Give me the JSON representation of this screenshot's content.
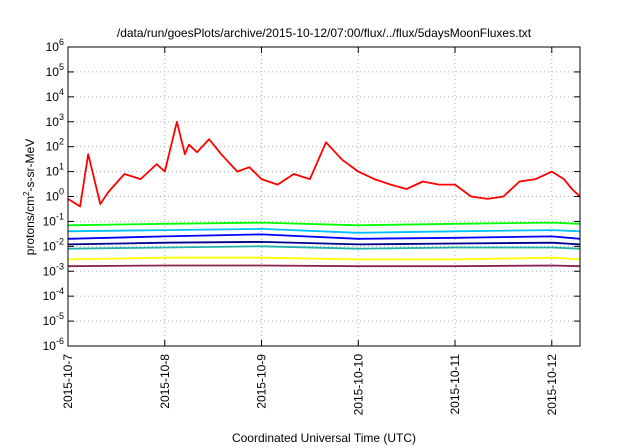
{
  "chart_data": {
    "type": "line",
    "title": "/data/run/goesPlots/archive/2015-10-12/07:00/flux/../flux/5daysMoonFluxes.txt",
    "xlabel": "Coordinated Universal Time (UTC)",
    "ylabel": {
      "base": "protons/cm",
      "sup": "2",
      "rest": "-s-sr-MeV"
    },
    "y_scale": "log",
    "ylim_exponents": [
      -6,
      6
    ],
    "y_ticks": [
      {
        "base": "10",
        "exp": "-6"
      },
      {
        "base": "10",
        "exp": "-5"
      },
      {
        "base": "10",
        "exp": "-4"
      },
      {
        "base": "10",
        "exp": "-3"
      },
      {
        "base": "10",
        "exp": "-2"
      },
      {
        "base": "10",
        "exp": "-1"
      },
      {
        "base": "10",
        "exp": "0"
      },
      {
        "base": "10",
        "exp": "1"
      },
      {
        "base": "10",
        "exp": "2"
      },
      {
        "base": "10",
        "exp": "3"
      },
      {
        "base": "10",
        "exp": "4"
      },
      {
        "base": "10",
        "exp": "5"
      },
      {
        "base": "10",
        "exp": "6"
      }
    ],
    "x_domain": [
      "2015-10-07 00:00",
      "2015-10-12 07:00"
    ],
    "x_ticks": [
      "2015-10-7",
      "2015-10-8",
      "2015-10-9",
      "2015-10-10",
      "2015-10-11",
      "2015-10-12"
    ],
    "grid": true,
    "series": [
      {
        "color": "#ff0000",
        "x": [
          "2015-10-07 00:00",
          "2015-10-07 03:00",
          "2015-10-07 05:00",
          "2015-10-07 08:00",
          "2015-10-07 10:00",
          "2015-10-07 14:00",
          "2015-10-07 18:00",
          "2015-10-07 22:00",
          "2015-10-08 00:00",
          "2015-10-08 03:00",
          "2015-10-08 05:00",
          "2015-10-08 06:00",
          "2015-10-08 08:00",
          "2015-10-08 11:00",
          "2015-10-08 14:00",
          "2015-10-08 18:00",
          "2015-10-08 21:00",
          "2015-10-09 00:00",
          "2015-10-09 04:00",
          "2015-10-09 08:00",
          "2015-10-09 12:00",
          "2015-10-09 16:00",
          "2015-10-09 20:00",
          "2015-10-10 00:00",
          "2015-10-10 04:00",
          "2015-10-10 08:00",
          "2015-10-10 12:00",
          "2015-10-10 16:00",
          "2015-10-10 20:00",
          "2015-10-11 00:00",
          "2015-10-11 04:00",
          "2015-10-11 08:00",
          "2015-10-11 12:00",
          "2015-10-11 16:00",
          "2015-10-11 20:00",
          "2015-10-12 00:00",
          "2015-10-12 03:00",
          "2015-10-12 05:00",
          "2015-10-12 07:00"
        ],
        "y": [
          0.8,
          0.4,
          50,
          0.5,
          1.5,
          8,
          5,
          20,
          10,
          1000,
          50,
          120,
          60,
          200,
          50,
          10,
          15,
          5,
          3,
          8,
          5,
          150,
          30,
          10,
          5,
          3,
          2,
          4,
          3,
          3,
          1,
          0.8,
          1,
          4,
          5,
          10,
          5,
          2,
          1
        ]
      },
      {
        "color": "#00ff00",
        "x": [
          "2015-10-07 00:00",
          "2015-10-08 00:00",
          "2015-10-09 00:00",
          "2015-10-10 00:00",
          "2015-10-11 00:00",
          "2015-10-12 00:00",
          "2015-10-12 07:00"
        ],
        "y": [
          0.07,
          0.08,
          0.09,
          0.07,
          0.08,
          0.09,
          0.08
        ]
      },
      {
        "color": "#00c0ff",
        "x": [
          "2015-10-07 00:00",
          "2015-10-08 00:00",
          "2015-10-09 00:00",
          "2015-10-10 00:00",
          "2015-10-11 00:00",
          "2015-10-12 00:00",
          "2015-10-12 07:00"
        ],
        "y": [
          0.04,
          0.045,
          0.05,
          0.035,
          0.04,
          0.045,
          0.04
        ]
      },
      {
        "color": "#0000ff",
        "x": [
          "2015-10-07 00:00",
          "2015-10-08 00:00",
          "2015-10-09 00:00",
          "2015-10-10 00:00",
          "2015-10-11 00:00",
          "2015-10-12 00:00",
          "2015-10-12 07:00"
        ],
        "y": [
          0.02,
          0.025,
          0.03,
          0.02,
          0.022,
          0.025,
          0.02
        ]
      },
      {
        "color": "#00008b",
        "x": [
          "2015-10-07 00:00",
          "2015-10-08 00:00",
          "2015-10-09 00:00",
          "2015-10-10 00:00",
          "2015-10-11 00:00",
          "2015-10-12 00:00",
          "2015-10-12 07:00"
        ],
        "y": [
          0.012,
          0.014,
          0.015,
          0.012,
          0.013,
          0.014,
          0.012
        ]
      },
      {
        "color": "#20b2aa",
        "x": [
          "2015-10-07 00:00",
          "2015-10-08 00:00",
          "2015-10-09 00:00",
          "2015-10-10 00:00",
          "2015-10-11 00:00",
          "2015-10-12 00:00",
          "2015-10-12 07:00"
        ],
        "y": [
          0.008,
          0.009,
          0.01,
          0.008,
          0.009,
          0.009,
          0.008
        ]
      },
      {
        "color": "#ffff00",
        "x": [
          "2015-10-07 00:00",
          "2015-10-08 00:00",
          "2015-10-09 00:00",
          "2015-10-10 00:00",
          "2015-10-11 00:00",
          "2015-10-12 00:00",
          "2015-10-12 07:00"
        ],
        "y": [
          0.003,
          0.0035,
          0.0035,
          0.003,
          0.003,
          0.0035,
          0.003
        ]
      },
      {
        "color": "#8b2252",
        "x": [
          "2015-10-07 00:00",
          "2015-10-08 00:00",
          "2015-10-09 00:00",
          "2015-10-10 00:00",
          "2015-10-11 00:00",
          "2015-10-12 00:00",
          "2015-10-12 07:00"
        ],
        "y": [
          0.0016,
          0.0017,
          0.0017,
          0.0016,
          0.0016,
          0.0017,
          0.0016
        ]
      }
    ]
  }
}
